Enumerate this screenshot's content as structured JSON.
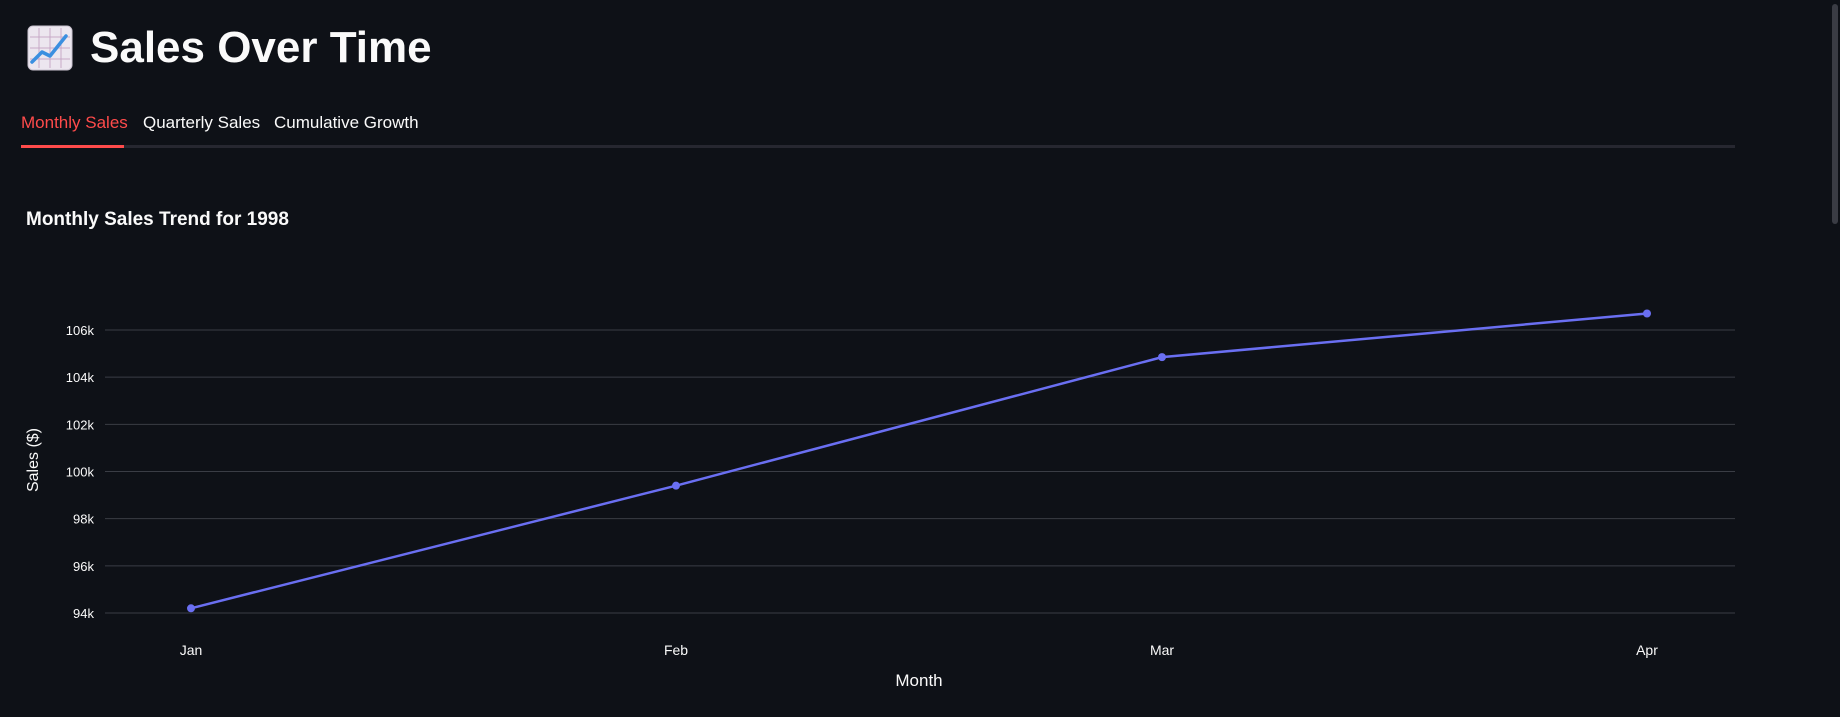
{
  "page": {
    "title": "Sales Over Time",
    "title_icon": "chart-increasing-icon"
  },
  "tabs": [
    {
      "label": "Monthly Sales",
      "active": true
    },
    {
      "label": "Quarterly Sales",
      "active": false
    },
    {
      "label": "Cumulative Growth",
      "active": false
    }
  ],
  "colors": {
    "background": "#0e1117",
    "accent": "#ff4b4b",
    "series": "#6a6ff2",
    "grid": "#3a3d45",
    "text": "#fafafa"
  },
  "chart_data": {
    "type": "line",
    "title": "Monthly Sales Trend for 1998",
    "xlabel": "Month",
    "ylabel": "Sales ($)",
    "categories": [
      "Jan",
      "Feb",
      "Mar",
      "Apr"
    ],
    "values": [
      94200,
      99400,
      104850,
      106700
    ],
    "ylim": [
      94000,
      106000
    ],
    "yticks": [
      94000,
      96000,
      98000,
      100000,
      102000,
      104000,
      106000
    ],
    "ytick_labels": [
      "94k",
      "96k",
      "98k",
      "100k",
      "102k",
      "104k",
      "106k"
    ],
    "grid": true,
    "markers": true
  }
}
